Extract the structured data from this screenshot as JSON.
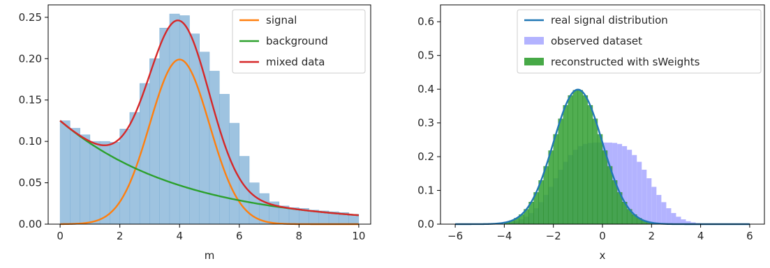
{
  "chart_data": [
    {
      "type": "histogram+line",
      "xlabel": "m",
      "ylabel": "",
      "xlim": [
        -0.4,
        10.4
      ],
      "ylim": [
        0,
        0.265
      ],
      "xticks": [
        0,
        2,
        4,
        6,
        8,
        10
      ],
      "yticks": [
        0.0,
        0.05,
        0.1,
        0.15,
        0.2,
        0.25
      ],
      "ytick_labels": [
        "0.00",
        "0.05",
        "0.10",
        "0.15",
        "0.20",
        "0.25"
      ],
      "legend_position": "top-right",
      "histogram": {
        "name": "mixed data histogram",
        "color": "#9ec3e0",
        "edge_color": "#7fb0d6",
        "bin_edges": [
          0,
          0.333,
          0.667,
          1.0,
          1.333,
          1.667,
          2.0,
          2.333,
          2.667,
          3.0,
          3.333,
          3.667,
          4.0,
          4.333,
          4.667,
          5.0,
          5.333,
          5.667,
          6.0,
          6.333,
          6.667,
          7.0,
          7.333,
          7.667,
          8.0,
          8.333,
          8.667,
          9.0,
          9.333,
          9.667,
          10.0
        ],
        "heights": [
          0.125,
          0.116,
          0.108,
          0.1,
          0.1,
          0.099,
          0.115,
          0.135,
          0.17,
          0.2,
          0.237,
          0.254,
          0.252,
          0.23,
          0.208,
          0.185,
          0.157,
          0.122,
          0.082,
          0.05,
          0.037,
          0.027,
          0.022,
          0.02,
          0.019,
          0.017,
          0.016,
          0.015,
          0.014,
          0.012
        ]
      },
      "series": [
        {
          "name": "signal",
          "color": "#ff7f0e",
          "kind": "gaussian",
          "amplitude": 0.199,
          "mean": 4.0,
          "sigma": 1.0
        },
        {
          "name": "background",
          "color": "#2ca02c",
          "kind": "exponential",
          "amplitude": 0.125,
          "rate": 0.245
        },
        {
          "name": "mixed data",
          "color": "#d62728",
          "kind": "sum",
          "of": [
            "signal",
            "background"
          ]
        }
      ]
    },
    {
      "type": "histogram+line",
      "xlabel": "x",
      "ylabel": "",
      "xlim": [
        -6.6,
        6.6
      ],
      "ylim": [
        0,
        0.65
      ],
      "xticks": [
        -6,
        -4,
        -2,
        0,
        2,
        4,
        6
      ],
      "xtick_labels": [
        "−6",
        "−4",
        "−2",
        "0",
        "2",
        "4",
        "6"
      ],
      "yticks": [
        0.0,
        0.1,
        0.2,
        0.3,
        0.4,
        0.5,
        0.6
      ],
      "ytick_labels": [
        "0.0",
        "0.1",
        "0.2",
        "0.3",
        "0.4",
        "0.5",
        "0.6"
      ],
      "legend_position": "top-right",
      "series": [
        {
          "name": "real signal distribution",
          "type": "line",
          "color": "#1f77b4",
          "kind": "gaussian",
          "mean": -1.0,
          "sigma": 1.0,
          "x_range": [
            -6,
            6
          ]
        },
        {
          "name": "observed dataset",
          "type": "histogram",
          "color": "#b3b3ff",
          "alpha": 1.0,
          "bin_width": 0.2,
          "x_range": [
            -4.0,
            4.0
          ],
          "components": [
            {
              "weight": 0.5,
              "mean": -1.0,
              "sigma": 1.0
            },
            {
              "weight": 0.5,
              "mean": 1.0,
              "sigma": 1.0
            }
          ]
        },
        {
          "name": "reconstructed with sWeights",
          "type": "histogram",
          "color": "#33a033",
          "alpha": 0.85,
          "bin_width": 0.2,
          "x_range": [
            -4.0,
            4.0
          ],
          "components": [
            {
              "weight": 1.0,
              "mean": -1.0,
              "sigma": 1.0
            }
          ]
        }
      ]
    }
  ]
}
